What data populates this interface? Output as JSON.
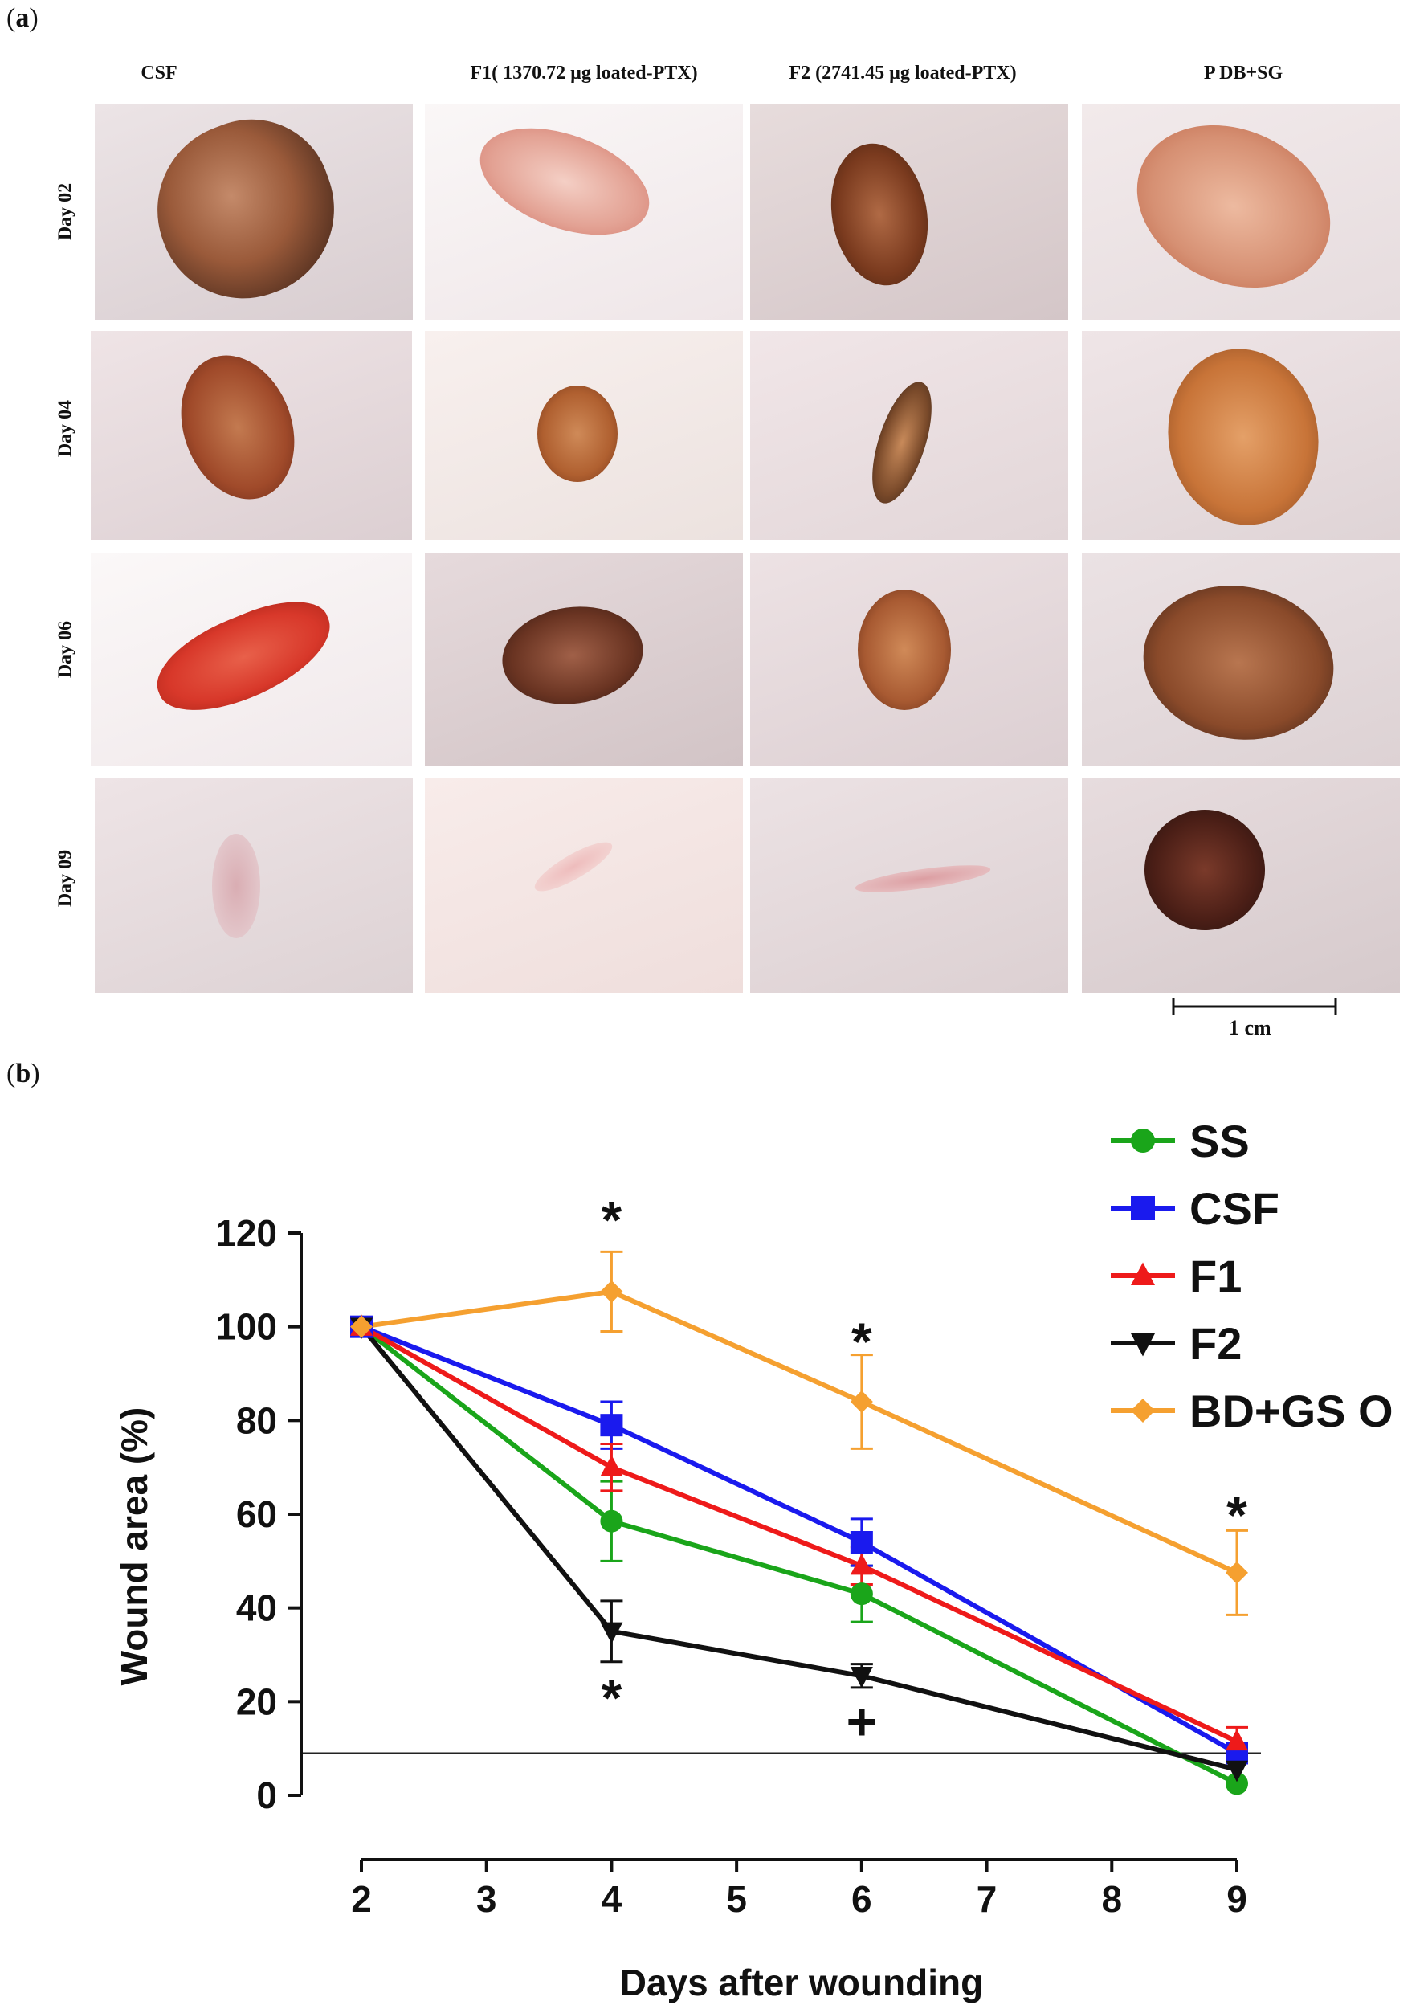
{
  "panel_a": {
    "label_open": "(",
    "label_letter": "a",
    "label_close": ")",
    "columns": [
      "CSF",
      "F1( 1370.72 µg  loated-PTX)",
      "F2 (2741.45 µg  loated-PTX)",
      "P DB+SG"
    ],
    "rows": [
      "Day  02",
      "Day  04",
      "Day  06",
      "Day  09"
    ],
    "scale_label": "1 cm"
  },
  "panel_b": {
    "label_open": "(",
    "label_letter": "b",
    "label_close": ")"
  },
  "chart_data": {
    "type": "line",
    "title": "",
    "xlabel": "Days after wounding",
    "ylabel": "Wound area (%)",
    "x_ticks": [
      2,
      3,
      4,
      5,
      6,
      7,
      8,
      9
    ],
    "y_ticks": [
      0,
      20,
      40,
      60,
      80,
      100,
      120
    ],
    "xlim": [
      2,
      9
    ],
    "ylim": [
      0,
      120
    ],
    "x": [
      2,
      4,
      6,
      9
    ],
    "reference_line_y": 9,
    "legend_position": "top-right",
    "series": [
      {
        "name": "SS",
        "color": "#1aa51a",
        "marker": "circle",
        "values": [
          100,
          58.5,
          43,
          2.5
        ],
        "errors": [
          0,
          8.5,
          6,
          0
        ]
      },
      {
        "name": "CSF",
        "color": "#1a1aee",
        "marker": "square",
        "values": [
          100,
          79,
          54,
          9
        ],
        "errors": [
          0,
          5,
          5,
          0
        ]
      },
      {
        "name": "F1",
        "color": "#ee1a1a",
        "marker": "triangle-up",
        "values": [
          100,
          70,
          49,
          11.5
        ],
        "errors": [
          0,
          5,
          4,
          3
        ]
      },
      {
        "name": "F2",
        "color": "#111111",
        "marker": "triangle-down",
        "values": [
          100,
          35,
          25.5,
          5.5
        ],
        "errors": [
          0,
          6.5,
          2.5,
          0
        ]
      },
      {
        "name": "BD+GS O",
        "color": "#f5a030",
        "marker": "diamond",
        "values": [
          100,
          107.5,
          84,
          47.5
        ],
        "errors": [
          0,
          8.5,
          10,
          9
        ]
      }
    ],
    "annotations": [
      {
        "text": "*",
        "x": 4,
        "y": 122
      },
      {
        "text": "*",
        "x": 6,
        "y": 96
      },
      {
        "text": "*",
        "x": 9,
        "y": 59
      },
      {
        "text": "*",
        "x": 4,
        "y": 20
      },
      {
        "text": "+",
        "x": 6,
        "y": 15
      }
    ]
  }
}
